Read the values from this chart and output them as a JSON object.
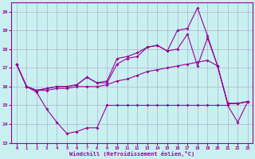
{
  "xlabel": "Windchill (Refroidissement éolien,°C)",
  "background_color": "#c8f0f0",
  "line_color": "#990099",
  "grid_color": "#b0b0cc",
  "xlim": [
    -0.5,
    23.5
  ],
  "ylim": [
    13,
    20.5
  ],
  "yticks": [
    13,
    14,
    15,
    16,
    17,
    18,
    19,
    20
  ],
  "xticks": [
    0,
    1,
    2,
    3,
    4,
    5,
    6,
    7,
    8,
    9,
    10,
    11,
    12,
    13,
    14,
    15,
    16,
    17,
    18,
    19,
    20,
    21,
    22,
    23
  ],
  "curve_bottom": [
    17.2,
    16.0,
    15.7,
    14.8,
    14.1,
    13.5,
    13.6,
    13.8,
    13.8,
    15.0,
    15.0,
    15.0,
    15.0,
    15.0,
    15.0,
    15.0,
    15.0,
    15.0,
    15.0,
    15.0,
    15.0,
    15.0,
    14.1,
    15.2
  ],
  "curve_flat": [
    17.2,
    16.0,
    15.8,
    15.8,
    15.9,
    15.9,
    16.0,
    16.0,
    16.0,
    16.1,
    16.3,
    16.4,
    16.6,
    16.8,
    16.9,
    17.0,
    17.1,
    17.2,
    17.3,
    17.4,
    17.1,
    15.1,
    15.1,
    15.2
  ],
  "curve_mid": [
    17.2,
    16.0,
    15.8,
    15.9,
    16.0,
    16.0,
    16.1,
    16.5,
    16.2,
    16.2,
    17.2,
    17.5,
    17.6,
    18.1,
    18.2,
    17.9,
    18.0,
    18.8,
    17.1,
    18.6,
    17.1,
    15.1,
    15.1,
    15.2
  ],
  "curve_top": [
    17.2,
    16.0,
    15.8,
    15.9,
    16.0,
    16.0,
    16.1,
    16.5,
    16.2,
    16.3,
    17.5,
    17.6,
    17.8,
    18.1,
    18.2,
    17.9,
    19.0,
    19.1,
    20.2,
    18.7,
    17.1,
    15.1,
    15.1,
    15.2
  ]
}
